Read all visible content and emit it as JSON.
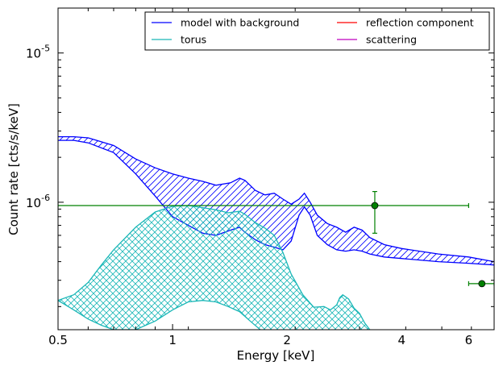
{
  "chart_data": {
    "type": "line",
    "title": "",
    "xlabel": "Energy [keV]",
    "ylabel": "Count rate [cts/s/keV]",
    "x_scale": "log",
    "y_scale": "log",
    "xlim": [
      0.5,
      7.0
    ],
    "ylim": [
      1.4e-07,
      2e-05
    ],
    "x_tick_labels": [
      {
        "value": 0.5,
        "label": "0.5"
      },
      {
        "value": 1,
        "label": "1"
      },
      {
        "value": 2,
        "label": "2"
      },
      {
        "value": 4,
        "label": "4"
      },
      {
        "value": 6,
        "label": "6"
      }
    ],
    "y_tick_labels": [
      {
        "value": 1e-06,
        "base": "10",
        "exp": "-6"
      },
      {
        "value": 1e-05,
        "base": "10",
        "exp": "-5"
      }
    ],
    "legend": {
      "placement": "top-right",
      "columns": 2,
      "entries": [
        {
          "label": "model with background",
          "color": "#0000ff"
        },
        {
          "label": "torus",
          "color": "#1ab7b7"
        },
        {
          "label": "reflection component",
          "color": "#ff0000"
        },
        {
          "label": "scattering",
          "color": "#bf00bf"
        }
      ]
    },
    "series": [
      {
        "name": "model with background",
        "style": "band",
        "hatch": "diagonal",
        "color": "#0000ff",
        "upper": [
          [
            0.5,
            2.75e-06
          ],
          [
            0.55,
            2.75e-06
          ],
          [
            0.6,
            2.7e-06
          ],
          [
            0.7,
            2.4e-06
          ],
          [
            0.8,
            1.95e-06
          ],
          [
            0.9,
            1.7e-06
          ],
          [
            1.0,
            1.55e-06
          ],
          [
            1.1,
            1.45e-06
          ],
          [
            1.2,
            1.38e-06
          ],
          [
            1.3,
            1.3e-06
          ],
          [
            1.42,
            1.35e-06
          ],
          [
            1.5,
            1.45e-06
          ],
          [
            1.55,
            1.4e-06
          ],
          [
            1.65,
            1.2e-06
          ],
          [
            1.75,
            1.12e-06
          ],
          [
            1.85,
            1.15e-06
          ],
          [
            1.95,
            1.05e-06
          ],
          [
            2.05,
            9.7e-07
          ],
          [
            2.15,
            1.05e-06
          ],
          [
            2.22,
            1.15e-06
          ],
          [
            2.3,
            1e-06
          ],
          [
            2.4,
            8.2e-07
          ],
          [
            2.55,
            7.2e-07
          ],
          [
            2.7,
            6.8e-07
          ],
          [
            2.85,
            6.3e-07
          ],
          [
            3.0,
            6.8e-07
          ],
          [
            3.15,
            6.5e-07
          ],
          [
            3.3,
            5.8e-07
          ],
          [
            3.6,
            5.2e-07
          ],
          [
            4.0,
            4.9e-07
          ],
          [
            5.0,
            4.5e-07
          ],
          [
            6.0,
            4.3e-07
          ],
          [
            7.0,
            4e-07
          ]
        ],
        "lower": [
          [
            0.5,
            2.6e-06
          ],
          [
            0.55,
            2.6e-06
          ],
          [
            0.6,
            2.5e-06
          ],
          [
            0.7,
            2.15e-06
          ],
          [
            0.8,
            1.55e-06
          ],
          [
            0.9,
            1.1e-06
          ],
          [
            1.0,
            8e-07
          ],
          [
            1.1,
            7e-07
          ],
          [
            1.2,
            6.2e-07
          ],
          [
            1.3,
            6e-07
          ],
          [
            1.42,
            6.5e-07
          ],
          [
            1.5,
            6.8e-07
          ],
          [
            1.55,
            6.3e-07
          ],
          [
            1.65,
            5.6e-07
          ],
          [
            1.75,
            5.2e-07
          ],
          [
            1.85,
            5e-07
          ],
          [
            1.95,
            4.8e-07
          ],
          [
            2.05,
            5.5e-07
          ],
          [
            2.15,
            8.2e-07
          ],
          [
            2.22,
            9.3e-07
          ],
          [
            2.3,
            8.2e-07
          ],
          [
            2.4,
            6e-07
          ],
          [
            2.55,
            5.2e-07
          ],
          [
            2.7,
            4.8e-07
          ],
          [
            2.85,
            4.7e-07
          ],
          [
            3.0,
            4.8e-07
          ],
          [
            3.15,
            4.7e-07
          ],
          [
            3.3,
            4.5e-07
          ],
          [
            3.6,
            4.3e-07
          ],
          [
            4.0,
            4.2e-07
          ],
          [
            5.0,
            4e-07
          ],
          [
            6.0,
            3.9e-07
          ],
          [
            7.0,
            3.8e-07
          ]
        ]
      },
      {
        "name": "torus",
        "style": "band",
        "hatch": "cross",
        "color": "#1ab7b7",
        "upper": [
          [
            0.5,
            2.2e-07
          ],
          [
            0.55,
            2.4e-07
          ],
          [
            0.6,
            2.9e-07
          ],
          [
            0.65,
            3.8e-07
          ],
          [
            0.7,
            4.8e-07
          ],
          [
            0.8,
            6.8e-07
          ],
          [
            0.9,
            8.6e-07
          ],
          [
            1.0,
            9.4e-07
          ],
          [
            1.1,
            9.5e-07
          ],
          [
            1.2,
            9.2e-07
          ],
          [
            1.3,
            8.9e-07
          ],
          [
            1.4,
            8.5e-07
          ],
          [
            1.5,
            8.7e-07
          ],
          [
            1.55,
            8.3e-07
          ],
          [
            1.65,
            7.3e-07
          ],
          [
            1.75,
            6.7e-07
          ],
          [
            1.85,
            6e-07
          ],
          [
            1.95,
            4.6e-07
          ],
          [
            2.05,
            3.3e-07
          ],
          [
            2.2,
            2.4e-07
          ],
          [
            2.35,
            1.98e-07
          ],
          [
            2.5,
            2e-07
          ],
          [
            2.6,
            1.9e-07
          ],
          [
            2.7,
            2.05e-07
          ],
          [
            2.75,
            2.3e-07
          ],
          [
            2.8,
            2.4e-07
          ],
          [
            2.9,
            2.25e-07
          ],
          [
            3.0,
            1.95e-07
          ],
          [
            3.1,
            1.8e-07
          ],
          [
            3.2,
            1.55e-07
          ],
          [
            3.3,
            1.4e-07
          ]
        ],
        "lower": [
          [
            0.5,
            2.2e-07
          ],
          [
            0.55,
            1.9e-07
          ],
          [
            0.6,
            1.65e-07
          ],
          [
            0.65,
            1.5e-07
          ],
          [
            0.7,
            1.4e-07
          ],
          [
            0.8,
            1.4e-07
          ],
          [
            0.9,
            1.6e-07
          ],
          [
            1.0,
            1.9e-07
          ],
          [
            1.1,
            2.15e-07
          ],
          [
            1.2,
            2.2e-07
          ],
          [
            1.3,
            2.15e-07
          ],
          [
            1.4,
            2e-07
          ],
          [
            1.5,
            1.85e-07
          ],
          [
            1.6,
            1.6e-07
          ],
          [
            1.7,
            1.4e-07
          ],
          [
            1.9,
            1.3e-07
          ],
          [
            2.5,
            1.25e-07
          ],
          [
            3.3,
            1.3e-07
          ]
        ]
      }
    ],
    "data_points": [
      {
        "x": 3.4,
        "y": 9.5e-07,
        "xerr": [
          0.5,
          6.0
        ],
        "yerr": [
          6.2e-07,
          1.18e-06
        ],
        "color": "#008000"
      },
      {
        "x": 6.5,
        "y": 2.85e-07,
        "xerr": [
          6.0,
          7.0
        ],
        "yerr": [
          2.8e-07,
          2.9e-07
        ],
        "color": "#008000"
      }
    ],
    "grid": false
  }
}
